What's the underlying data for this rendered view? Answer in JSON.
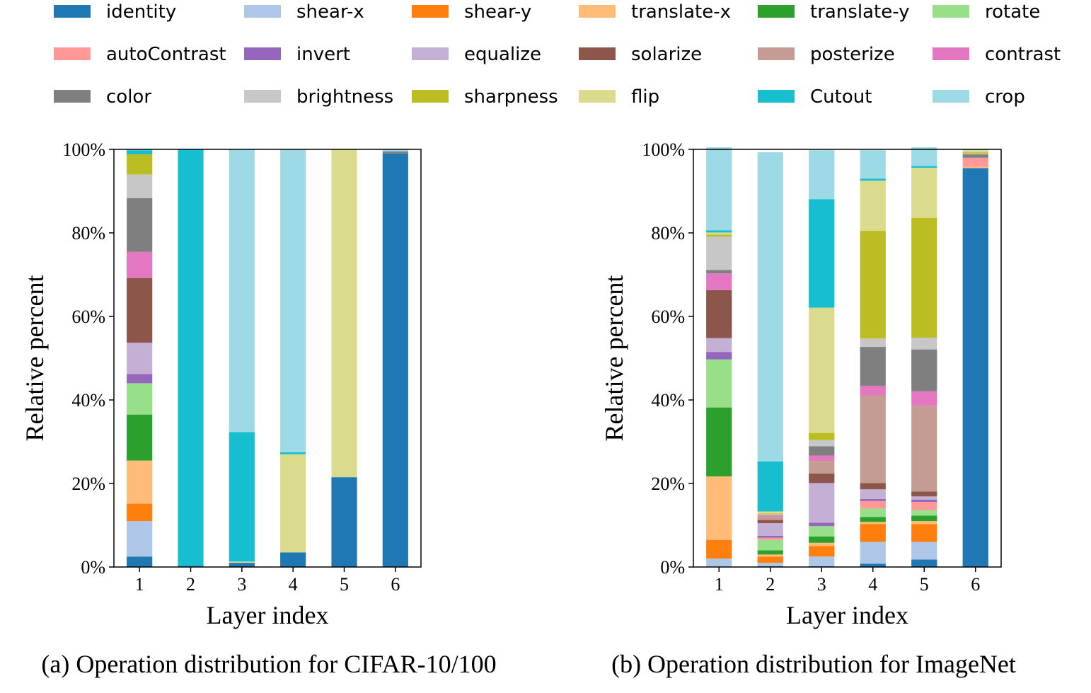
{
  "legend": [
    {
      "label": "identity",
      "color": "#1f77b4"
    },
    {
      "label": "shear-x",
      "color": "#aec7e8"
    },
    {
      "label": "shear-y",
      "color": "#ff7f0e"
    },
    {
      "label": "translate-x",
      "color": "#ffbb78"
    },
    {
      "label": "translate-y",
      "color": "#2ca02c"
    },
    {
      "label": "rotate",
      "color": "#98df8a"
    },
    {
      "label": "autoContrast",
      "color": "#ff9896"
    },
    {
      "label": "invert",
      "color": "#9467bd"
    },
    {
      "label": "equalize",
      "color": "#c5b0d5"
    },
    {
      "label": "solarize",
      "color": "#8c564b"
    },
    {
      "label": "posterize",
      "color": "#c49c94"
    },
    {
      "label": "contrast",
      "color": "#e377c2"
    },
    {
      "label": "color",
      "color": "#7f7f7f"
    },
    {
      "label": "brightness",
      "color": "#c7c7c7"
    },
    {
      "label": "sharpness",
      "color": "#bcbd22"
    },
    {
      "label": "flip",
      "color": "#dbdb8d"
    },
    {
      "label": "Cutout",
      "color": "#17becf"
    },
    {
      "label": "crop",
      "color": "#9edae5"
    }
  ],
  "chart_data": [
    {
      "type": "bar",
      "stacked": true,
      "title": "",
      "caption": "(a) Operation distribution for CIFAR-10/100",
      "xlabel": "Layer index",
      "ylabel": "Relative percent",
      "ylim": [
        0,
        100
      ],
      "yticks": [
        "0%",
        "20%",
        "40%",
        "60%",
        "80%",
        "100%"
      ],
      "categories": [
        "1",
        "2",
        "3",
        "4",
        "5",
        "6"
      ],
      "series": [
        {
          "name": "identity",
          "values": [
            2.5,
            0.3,
            1.0,
            3.5,
            21.5,
            99.0
          ]
        },
        {
          "name": "shear-x",
          "values": [
            8.5,
            0,
            0,
            0,
            0,
            0
          ]
        },
        {
          "name": "shear-y",
          "values": [
            4.2,
            0,
            0,
            0,
            0,
            0
          ]
        },
        {
          "name": "translate-x",
          "values": [
            10.3,
            0,
            0,
            0,
            0,
            0
          ]
        },
        {
          "name": "translate-y",
          "values": [
            11.0,
            0,
            0,
            0,
            0,
            0
          ]
        },
        {
          "name": "rotate",
          "values": [
            7.5,
            0,
            0,
            0,
            0,
            0
          ]
        },
        {
          "name": "autoContrast",
          "values": [
            0,
            0,
            0,
            0,
            0,
            0
          ]
        },
        {
          "name": "invert",
          "values": [
            2.2,
            0,
            0,
            0,
            0,
            0
          ]
        },
        {
          "name": "equalize",
          "values": [
            7.5,
            0,
            0,
            0,
            0,
            0
          ]
        },
        {
          "name": "solarize",
          "values": [
            15.5,
            0,
            0,
            0,
            0,
            0
          ]
        },
        {
          "name": "posterize",
          "values": [
            0,
            0,
            0,
            0,
            0,
            0
          ]
        },
        {
          "name": "contrast",
          "values": [
            6.3,
            0,
            0,
            0,
            0,
            0
          ]
        },
        {
          "name": "color",
          "values": [
            12.8,
            0,
            0,
            0,
            0,
            0.5
          ]
        },
        {
          "name": "brightness",
          "values": [
            5.7,
            0,
            0,
            0,
            0,
            0
          ]
        },
        {
          "name": "sharpness",
          "values": [
            4.8,
            0,
            0,
            0,
            0,
            0
          ]
        },
        {
          "name": "flip",
          "values": [
            0,
            0,
            0.3,
            23.5,
            78.5,
            0
          ]
        },
        {
          "name": "Cutout",
          "values": [
            1.0,
            99.7,
            31.0,
            0.5,
            0,
            0
          ]
        },
        {
          "name": "crop",
          "values": [
            0.2,
            0,
            67.7,
            72.5,
            0,
            0.5
          ]
        }
      ]
    },
    {
      "type": "bar",
      "stacked": true,
      "title": "",
      "caption": "(b) Operation distribution for ImageNet",
      "xlabel": "Layer index",
      "ylabel": "Relative percent",
      "ylim": [
        0,
        100
      ],
      "yticks": [
        "0%",
        "20%",
        "40%",
        "60%",
        "80%",
        "100%"
      ],
      "categories": [
        "1",
        "2",
        "3",
        "4",
        "5",
        "6"
      ],
      "series": [
        {
          "name": "identity",
          "values": [
            0,
            0.2,
            0.2,
            0.8,
            1.8,
            95.5
          ]
        },
        {
          "name": "shear-x",
          "values": [
            2.0,
            0.8,
            2.3,
            5.2,
            4.2,
            0
          ]
        },
        {
          "name": "shear-y",
          "values": [
            4.5,
            1.5,
            2.5,
            4.3,
            4.3,
            0
          ]
        },
        {
          "name": "translate-x",
          "values": [
            15.2,
            0.5,
            0.8,
            0.5,
            0.7,
            0.3
          ]
        },
        {
          "name": "translate-y",
          "values": [
            16.5,
            1.0,
            1.5,
            1.2,
            1.3,
            0
          ]
        },
        {
          "name": "rotate",
          "values": [
            11.5,
            2.5,
            2.5,
            2.0,
            1.3,
            0
          ]
        },
        {
          "name": "autoContrast",
          "values": [
            0,
            0.5,
            0,
            1.8,
            2.0,
            2.2
          ]
        },
        {
          "name": "invert",
          "values": [
            1.8,
            0.5,
            0.8,
            0.5,
            0.5,
            0
          ]
        },
        {
          "name": "equalize",
          "values": [
            3.3,
            3.0,
            9.5,
            2.3,
            0.8,
            0
          ]
        },
        {
          "name": "solarize",
          "values": [
            11.5,
            0.8,
            2.3,
            1.5,
            1.2,
            0
          ]
        },
        {
          "name": "posterize",
          "values": [
            0,
            0.8,
            3.0,
            21.0,
            20.5,
            0
          ]
        },
        {
          "name": "contrast",
          "values": [
            4.0,
            0.3,
            1.3,
            2.3,
            3.5,
            0
          ]
        },
        {
          "name": "color",
          "values": [
            0.8,
            0,
            2.2,
            9.3,
            10.0,
            0.8
          ]
        },
        {
          "name": "brightness",
          "values": [
            8.0,
            0.2,
            1.5,
            2.0,
            2.8,
            0.2
          ]
        },
        {
          "name": "sharpness",
          "values": [
            0.5,
            0.2,
            1.7,
            25.8,
            28.7,
            0.3
          ]
        },
        {
          "name": "flip",
          "values": [
            0.5,
            0.5,
            30.0,
            12.0,
            12.0,
            0.5
          ]
        },
        {
          "name": "Cutout",
          "values": [
            0.5,
            12.0,
            26.0,
            0.5,
            0.4,
            0
          ]
        },
        {
          "name": "crop",
          "values": [
            19.9,
            74.0,
            11.7,
            6.8,
            4.5,
            0.2
          ]
        }
      ]
    }
  ]
}
